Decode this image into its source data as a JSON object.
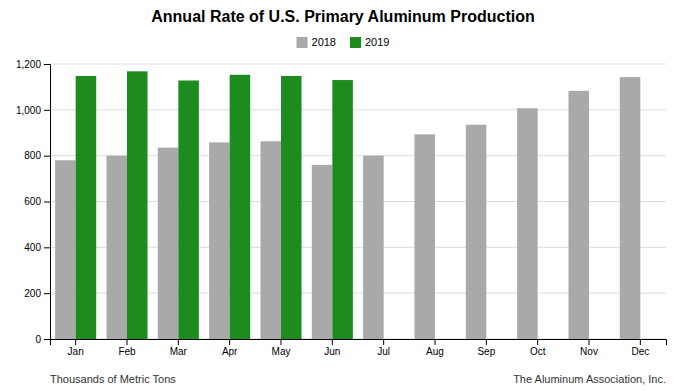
{
  "chart_data": {
    "type": "bar",
    "title": "Annual Rate of U.S. Primary Aluminum Production",
    "categories": [
      "Jan",
      "Feb",
      "Mar",
      "Apr",
      "May",
      "Jun",
      "Jul",
      "Aug",
      "Sep",
      "Oct",
      "Nov",
      "Dec"
    ],
    "series": [
      {
        "name": "2018",
        "color": "#A9A9A9",
        "values": [
          780,
          800,
          835,
          858,
          863,
          760,
          800,
          893,
          935,
          1007,
          1083,
          1143
        ]
      },
      {
        "name": "2019",
        "color": "#1E8B1E",
        "values": [
          1148,
          1168,
          1128,
          1153,
          1148,
          1130,
          null,
          null,
          null,
          null,
          null,
          null
        ]
      }
    ],
    "ylim": [
      0,
      1200
    ],
    "yticks": [
      0,
      200,
      400,
      600,
      800,
      {
        "value": 1000,
        "label": "1,000"
      },
      {
        "value": 1200,
        "label": "1,200"
      }
    ],
    "grid": true,
    "legend": "top",
    "annotations": [
      "Thousands of Metric Tons",
      "The Aluminum Association, Inc."
    ]
  }
}
